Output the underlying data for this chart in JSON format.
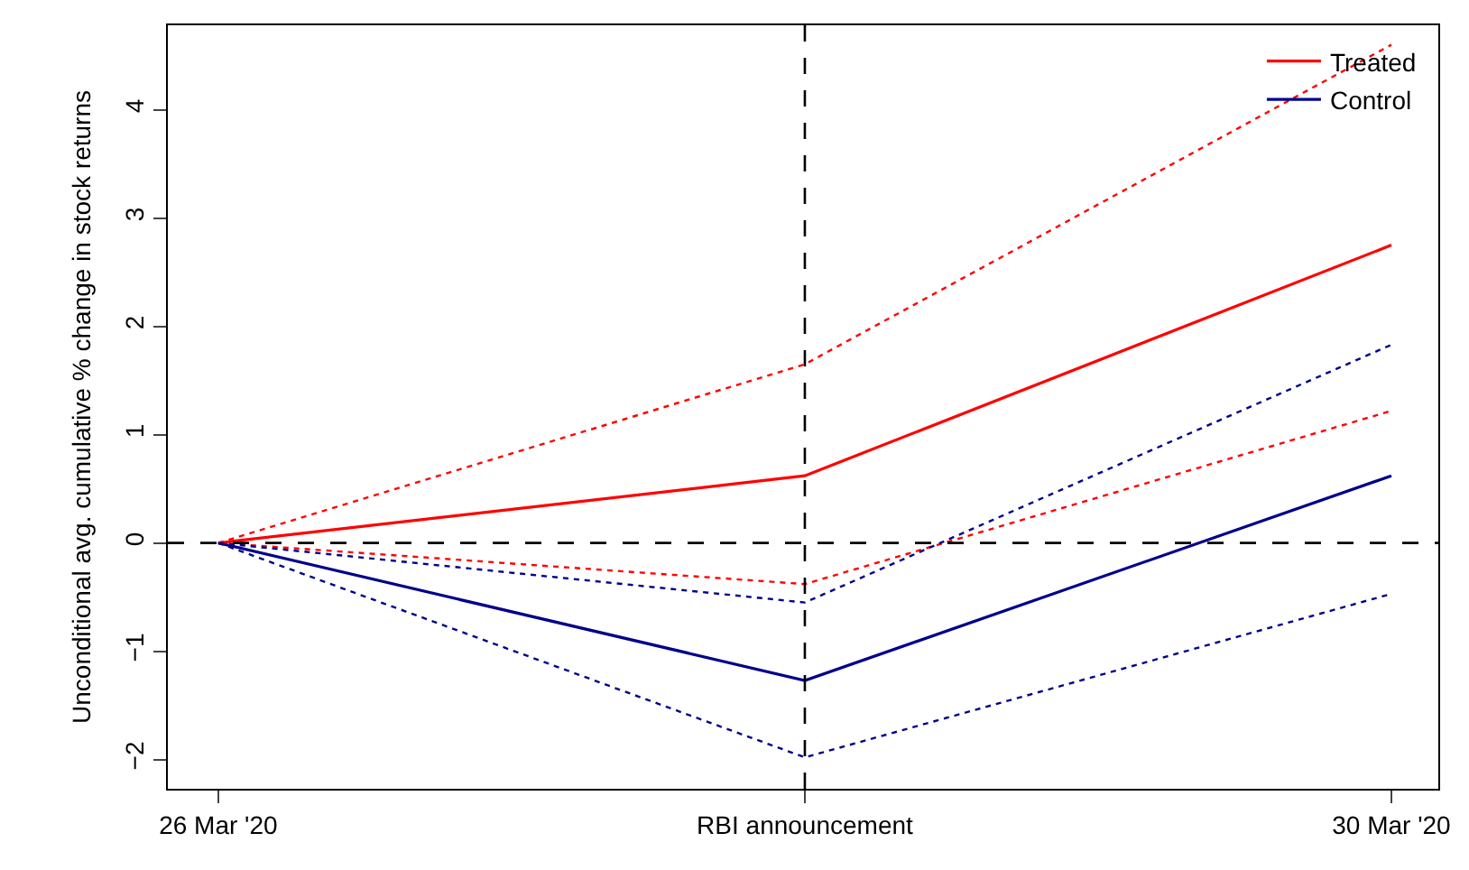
{
  "chart_data": {
    "type": "line",
    "ylabel": "Unconditional avg. cumulative % change in stock returns",
    "categories": [
      "26 Mar '20",
      "RBI announcement",
      "30 Mar '20"
    ],
    "series": [
      {
        "name": "Treated",
        "color": "#ff0000",
        "values": [
          0,
          0.62,
          2.75
        ]
      },
      {
        "name": "Control",
        "color": "#00008b",
        "values": [
          0,
          -1.27,
          0.62
        ]
      },
      {
        "color": "#ff0000",
        "values": [
          0,
          1.65,
          4.6
        ],
        "line_style": "dotted"
      },
      {
        "color": "#ff0000",
        "values": [
          0,
          -0.38,
          1.22
        ],
        "line_style": "dotted"
      },
      {
        "color": "#00008b",
        "values": [
          0,
          -0.55,
          1.83
        ],
        "line_style": "dotted"
      },
      {
        "color": "#00008b",
        "values": [
          0,
          -1.98,
          -0.47
        ],
        "line_style": "dotted"
      }
    ],
    "ylim": [
      -2.27,
      4.78
    ],
    "yticks": [
      {
        "value": -2,
        "label": "−2"
      },
      {
        "value": -1,
        "label": "−1"
      },
      0,
      1,
      2,
      3,
      4
    ],
    "ref_lines": [
      {
        "axis": "x",
        "value": "RBI announcement",
        "line_style": "dashed",
        "color": "#000000"
      },
      {
        "axis": "y",
        "value": 0,
        "line_style": "dashed",
        "color": "#000000"
      }
    ],
    "grid": false,
    "legend": "top right",
    "marker": "none",
    "line_style": "solid"
  }
}
